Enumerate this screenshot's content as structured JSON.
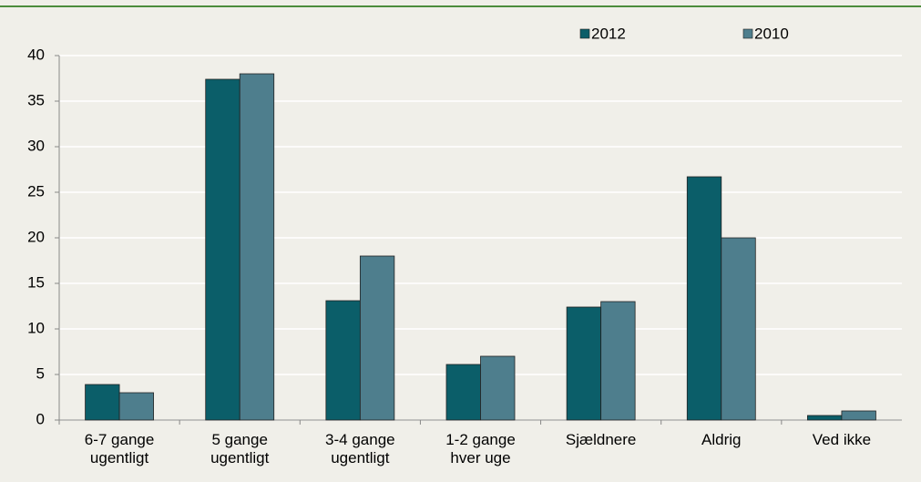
{
  "chart_data": {
    "type": "bar",
    "categories": [
      "6-7 gange ugentligt",
      "5 gange ugentligt",
      "3-4 gange ugentligt",
      "1-2 gange hver uge",
      "Sjældnere",
      "Aldrig",
      "Ved ikke"
    ],
    "series": [
      {
        "name": "2012",
        "color": "#0b5e69",
        "values": [
          3.9,
          37.4,
          13.1,
          6.1,
          12.4,
          26.7,
          0.5
        ]
      },
      {
        "name": "2010",
        "color": "#4e7e8d",
        "values": [
          3,
          38,
          18,
          7,
          13,
          20,
          1
        ]
      }
    ],
    "ylim": [
      0,
      40
    ],
    "yticks": [
      0,
      5,
      10,
      15,
      20,
      25,
      30,
      35,
      40
    ],
    "grid": true,
    "legend": "top"
  }
}
